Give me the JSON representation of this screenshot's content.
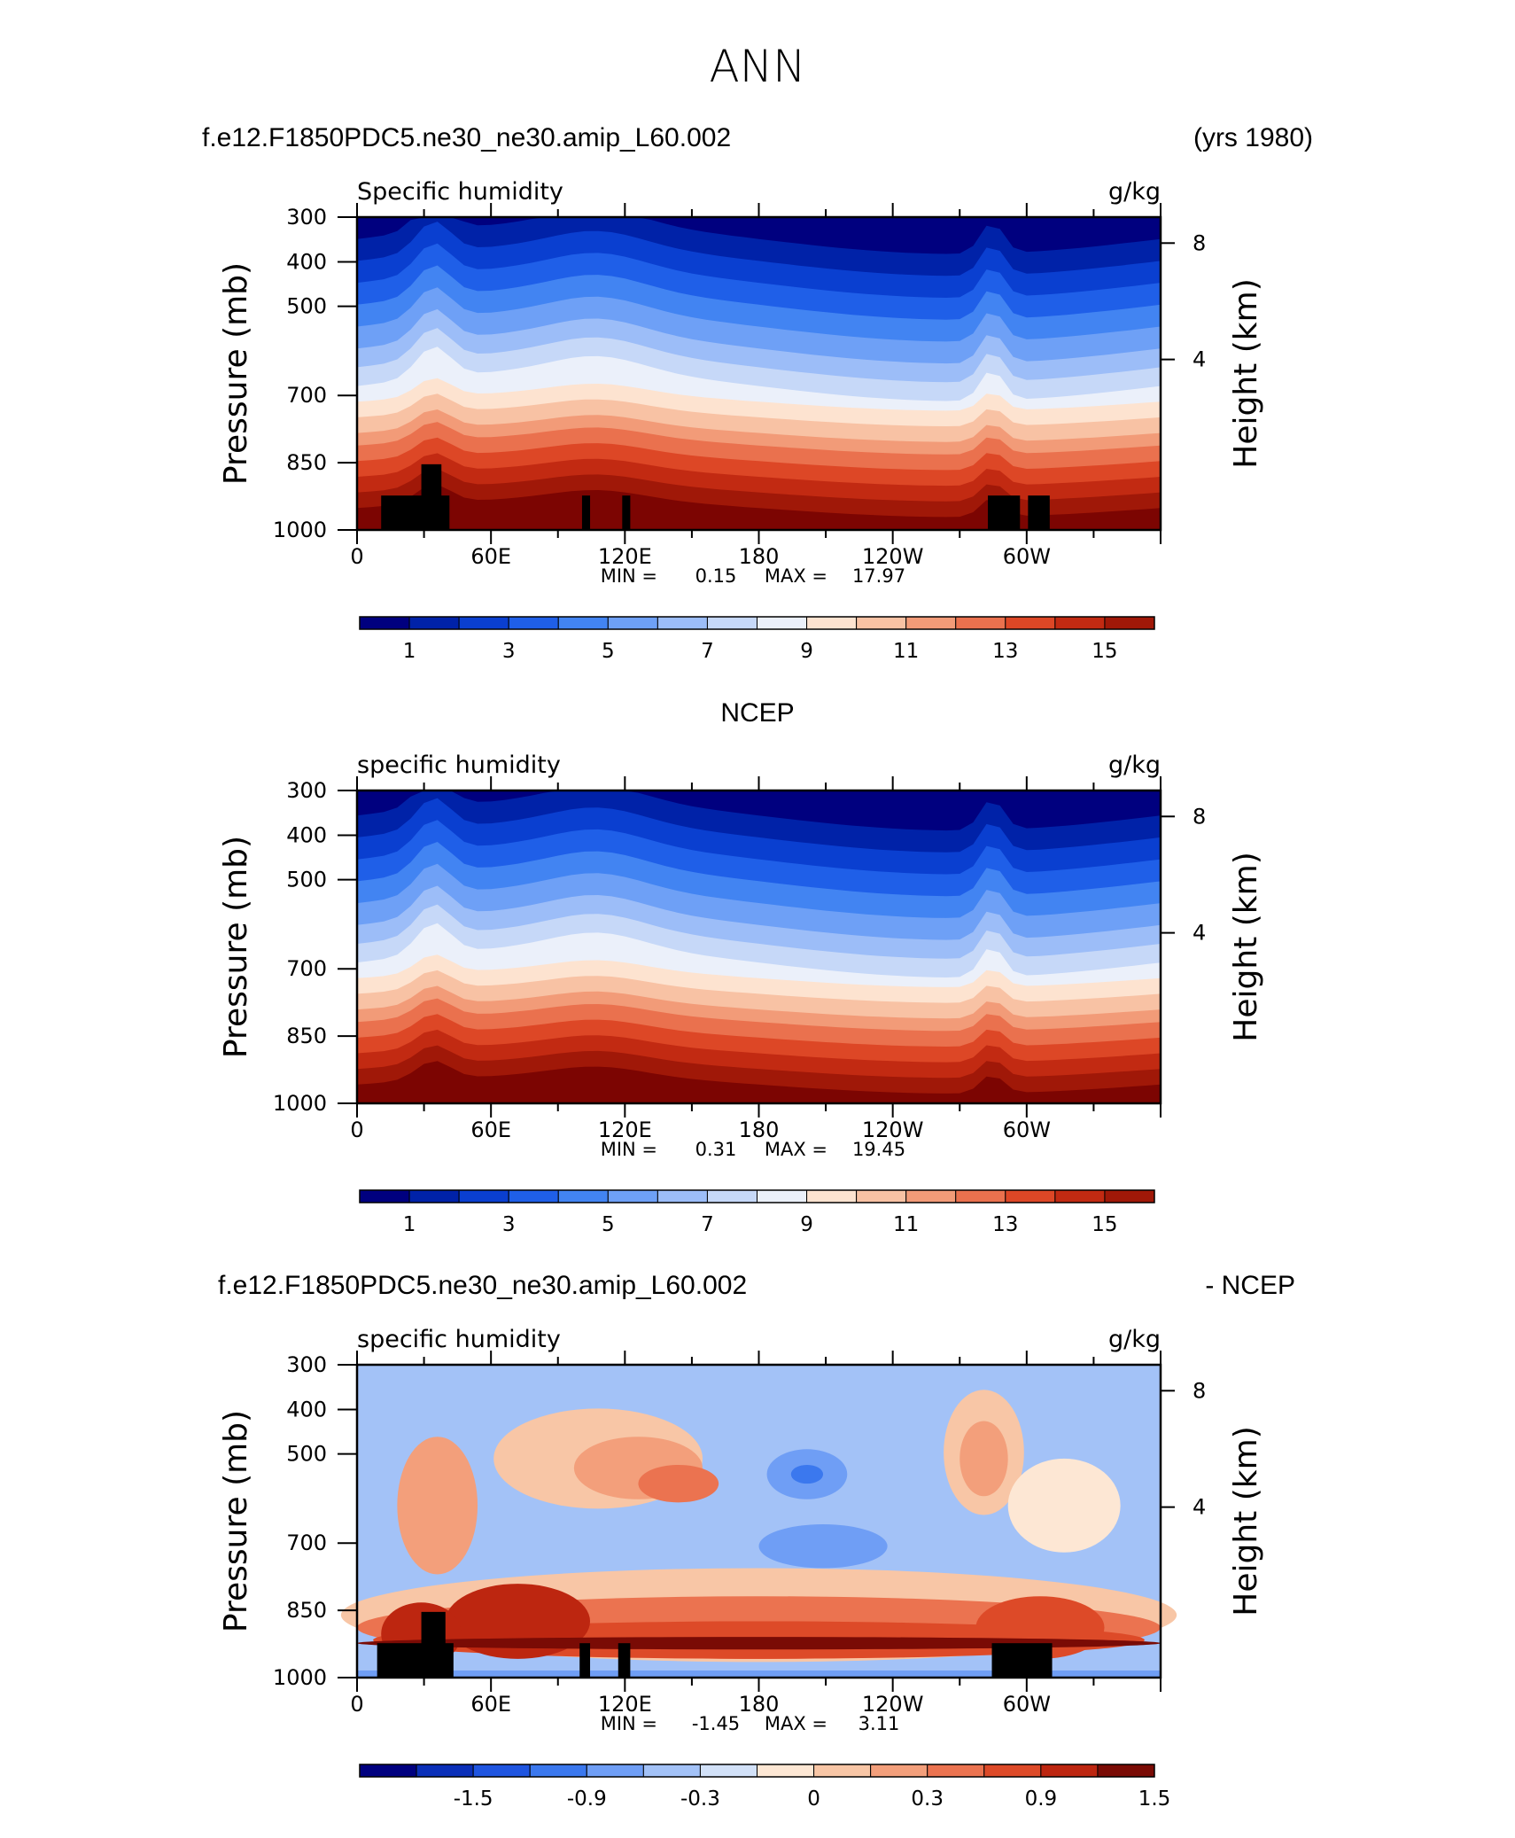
{
  "figure": {
    "title": "ANN",
    "colors": {
      "abs": [
        "#00007f",
        "#0022a8",
        "#0a3fd0",
        "#1f5fe8",
        "#4284f2",
        "#6ea0f6",
        "#9cbdf8",
        "#c6d8f8",
        "#ebf0fa",
        "#fde3d0",
        "#f8c2a4",
        "#f29b78",
        "#ea714e",
        "#dd4726",
        "#c22a12",
        "#a01808",
        "#7c0502"
      ],
      "diff": [
        "#00007f",
        "#0a2fb8",
        "#1f55e0",
        "#3b78ee",
        "#6f9ef5",
        "#a3c2f7",
        "#d2e1f8",
        "#fde7d4",
        "#f8c6a6",
        "#f39f7b",
        "#eb7350",
        "#dd4a28",
        "#bd2610",
        "#7a0b05"
      ]
    }
  },
  "chart_data": [
    {
      "type": "heatmap",
      "title": "f.e12.F1850PDC5.ne30_ne30.amip_L60.002",
      "title_right": "(yrs 1980)",
      "subtitle": "Specific humidity",
      "units": "g/kg",
      "ylabel": "Pressure (mb)",
      "y2label": "Height (km)",
      "yticks": [
        "300",
        "400",
        "500",
        "700",
        "850",
        "1000"
      ],
      "y2ticks": [
        "8",
        "4"
      ],
      "xticks": [
        "0",
        "60E",
        "120E",
        "180",
        "120W",
        "60W"
      ],
      "ylim": [
        1000,
        300
      ],
      "min_label": "MIN =",
      "min": "0.15",
      "max_label": "MAX =",
      "max": "17.97",
      "colorbar_labels": [
        "1",
        "3",
        "5",
        "7",
        "9",
        "11",
        "13",
        "15"
      ]
    },
    {
      "type": "heatmap",
      "title": "NCEP",
      "subtitle": "specific humidity",
      "units": "g/kg",
      "ylabel": "Pressure (mb)",
      "y2label": "Height (km)",
      "yticks": [
        "300",
        "400",
        "500",
        "700",
        "850",
        "1000"
      ],
      "y2ticks": [
        "8",
        "4"
      ],
      "xticks": [
        "0",
        "60E",
        "120E",
        "180",
        "120W",
        "60W"
      ],
      "ylim": [
        1000,
        300
      ],
      "min_label": "MIN =",
      "min": "0.31",
      "max_label": "MAX =",
      "max": "19.45",
      "colorbar_labels": [
        "1",
        "3",
        "5",
        "7",
        "9",
        "11",
        "13",
        "15"
      ]
    },
    {
      "type": "heatmap",
      "title": "f.e12.F1850PDC5.ne30_ne30.amip_L60.002",
      "title_right": "- NCEP",
      "subtitle": "specific humidity",
      "units": "g/kg",
      "ylabel": "Pressure (mb)",
      "y2label": "Height (km)",
      "yticks": [
        "300",
        "400",
        "500",
        "700",
        "850",
        "1000"
      ],
      "y2ticks": [
        "8",
        "4"
      ],
      "xticks": [
        "0",
        "60E",
        "120E",
        "180",
        "120W",
        "60W"
      ],
      "ylim": [
        1000,
        300
      ],
      "min_label": "MIN =",
      "min": "-1.45",
      "max_label": "MAX =",
      "max": "3.11",
      "colorbar_labels": [
        "-1.5",
        "-0.9",
        "-0.3",
        "0",
        "0.3",
        "0.9",
        "1.5"
      ]
    }
  ]
}
